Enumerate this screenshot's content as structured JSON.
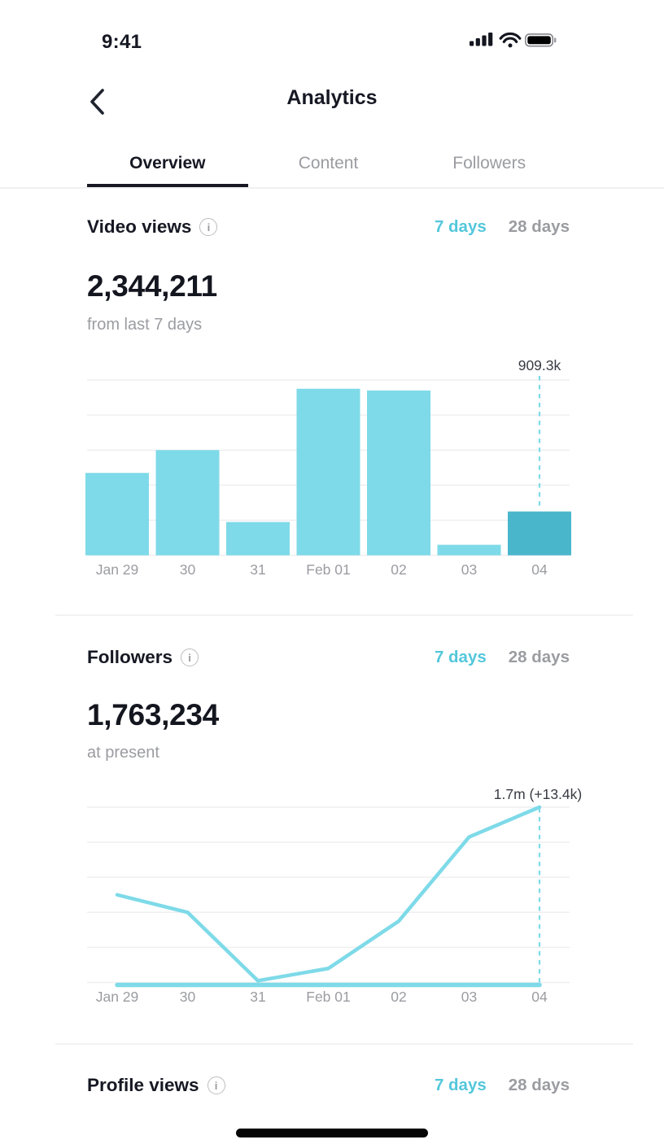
{
  "status_bar": {
    "time": "9:41",
    "icons": [
      "cellular-signal-icon",
      "wifi-icon",
      "battery-icon"
    ]
  },
  "header": {
    "title": "Analytics",
    "back_icon": "chevron-left-icon"
  },
  "tabs": [
    {
      "label": "Overview",
      "active": true
    },
    {
      "label": "Content",
      "active": false
    },
    {
      "label": "Followers",
      "active": false
    }
  ],
  "colors": {
    "dark_text": "#161823",
    "gray_text": "#9B9CA1",
    "accent_teal_text": "#53C7DB",
    "chart_cyan": "#7EDAE8",
    "chart_cyan_highlight": "#4AB6CC",
    "gridline": "#EFEFF1",
    "annotation_text": "#383B42"
  },
  "sections": {
    "video_views": {
      "title": "Video views",
      "info_icon": "info-icon",
      "ranges": {
        "active": "7 days",
        "inactive": "28 days"
      },
      "value": "2,344,211",
      "subtitle": "from last 7 days"
    },
    "followers": {
      "title": "Followers",
      "info_icon": "info-icon",
      "ranges": {
        "active": "7 days",
        "inactive": "28 days"
      },
      "value": "1,763,234",
      "subtitle": "at present"
    },
    "profile_views": {
      "title": "Profile views",
      "info_icon": "info-icon",
      "ranges": {
        "active": "7 days",
        "inactive": "28 days"
      }
    }
  },
  "chart_data": [
    {
      "id": "video-views-chart",
      "type": "bar",
      "title": "Video views — last 7 days",
      "categories": [
        "Jan 29",
        "30",
        "31",
        "Feb 01",
        "02",
        "03",
        "04"
      ],
      "values_pct": [
        47,
        60,
        19,
        95,
        94,
        6,
        25
      ],
      "values_unit": "percent of chart max height (estimated from pixels, no y-axis shown)",
      "highlighted_index": 6,
      "annotation": {
        "category": "04",
        "label": "909.3k"
      },
      "total_label": "2,344,211",
      "xlabel": "",
      "ylabel": "",
      "grid": "horizontal-light",
      "legend": "none"
    },
    {
      "id": "followers-chart",
      "type": "line",
      "title": "Followers — last 7 days",
      "categories": [
        "Jan 29",
        "30",
        "31",
        "Feb 01",
        "02",
        "03",
        "04"
      ],
      "values_pct": [
        50,
        40,
        1,
        8,
        35,
        83,
        100
      ],
      "values_unit": "percent of chart max height (estimated from pixels, no y-axis shown)",
      "annotation": {
        "category": "04",
        "label": "1.7m (+13.4k)"
      },
      "has_baseline_stripe": true,
      "xlabel": "",
      "ylabel": "",
      "grid": "horizontal-light",
      "legend": "none"
    }
  ],
  "home_indicator": {
    "icon": "home-indicator-bar"
  }
}
